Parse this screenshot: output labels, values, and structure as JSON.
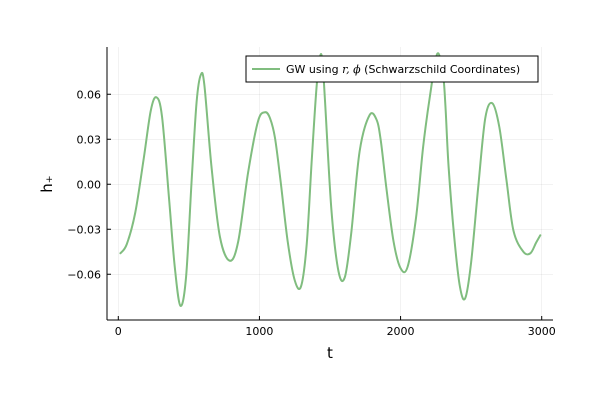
{
  "chart_data": {
    "type": "line",
    "title": "",
    "xlabel": "t",
    "ylabel": "h₊",
    "xlim": [
      -80,
      3080
    ],
    "ylim": [
      -0.0905,
      0.0915
    ],
    "xticks": [
      0,
      1000,
      2000,
      3000
    ],
    "xtick_labels": [
      "0",
      "1000",
      "2000",
      "3000"
    ],
    "yticks": [
      -0.06,
      -0.03,
      0.0,
      0.03,
      0.06
    ],
    "ytick_labels": [
      "−0.06",
      "−0.03",
      "0.00",
      "0.03",
      "0.06"
    ],
    "grid": true,
    "legend_position": "top-right",
    "series": [
      {
        "name": "GW using r, ϕ (Schwarzschild Coordinates)",
        "legend_prefix": "GW using ",
        "legend_math": "r, ϕ",
        "legend_suffix": " (Schwarzschild Coordinates)",
        "color": "#80bd7f",
        "x": [
          15,
          60,
          120,
          180,
          230,
          270,
          310,
          360,
          400,
          440,
          480,
          520,
          555,
          585,
          610,
          660,
          720,
          790,
          850,
          920,
          990,
          1040,
          1075,
          1110,
          1150,
          1200,
          1250,
          1295,
          1335,
          1370,
          1405,
          1432,
          1448,
          1465,
          1510,
          1560,
          1605,
          1650,
          1710,
          1780,
          1830,
          1860,
          1900,
          1950,
          2000,
          2050,
          2110,
          2160,
          2210,
          2260,
          2300,
          2318,
          2340,
          2380,
          2420,
          2458,
          2500,
          2550,
          2600,
          2650,
          2700,
          2750,
          2800,
          2870,
          2920,
          2960,
          2990
        ],
        "y": [
          -0.046,
          -0.04,
          -0.019,
          0.017,
          0.049,
          0.058,
          0.045,
          -0.01,
          -0.055,
          -0.081,
          -0.062,
          0.003,
          0.055,
          0.073,
          0.066,
          0.012,
          -0.035,
          -0.051,
          -0.038,
          0.008,
          0.042,
          0.048,
          0.044,
          0.031,
          0.002,
          -0.038,
          -0.064,
          -0.068,
          -0.04,
          0.015,
          0.065,
          0.086,
          0.08,
          0.055,
          -0.017,
          -0.058,
          -0.062,
          -0.033,
          0.022,
          0.046,
          0.043,
          0.029,
          -0.003,
          -0.038,
          -0.056,
          -0.055,
          -0.022,
          0.025,
          0.06,
          0.087,
          0.074,
          0.052,
          0.012,
          -0.035,
          -0.068,
          -0.076,
          -0.052,
          -0.002,
          0.044,
          0.054,
          0.038,
          0.003,
          -0.031,
          -0.045,
          -0.046,
          -0.039,
          -0.034
        ]
      }
    ]
  }
}
